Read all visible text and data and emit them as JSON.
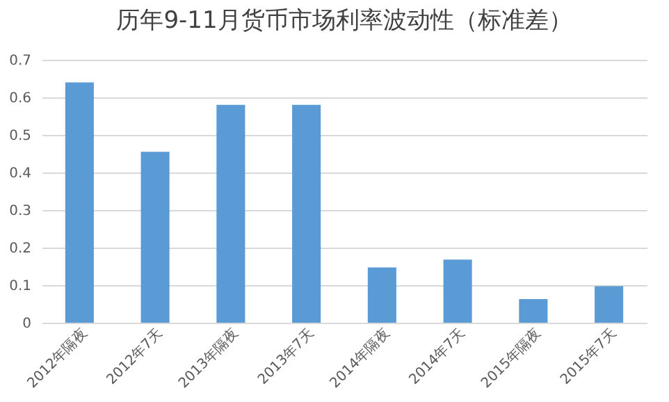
{
  "chart_data": {
    "type": "bar",
    "title": "历年9-11月货币市场利率波动性（标准差）",
    "categories": [
      "2012年隔夜",
      "2012年7天",
      "2013年隔夜",
      "2013年7天",
      "2014年隔夜",
      "2014年7天",
      "2015年隔夜",
      "2015年7天"
    ],
    "values": [
      0.64,
      0.455,
      0.58,
      0.58,
      0.147,
      0.168,
      0.063,
      0.097
    ],
    "color": "#5b9bd5",
    "ylim": [
      0,
      0.7
    ],
    "yticks": [
      0,
      0.1,
      0.2,
      0.3,
      0.4,
      0.5,
      0.6,
      0.7
    ],
    "grid": "y"
  }
}
